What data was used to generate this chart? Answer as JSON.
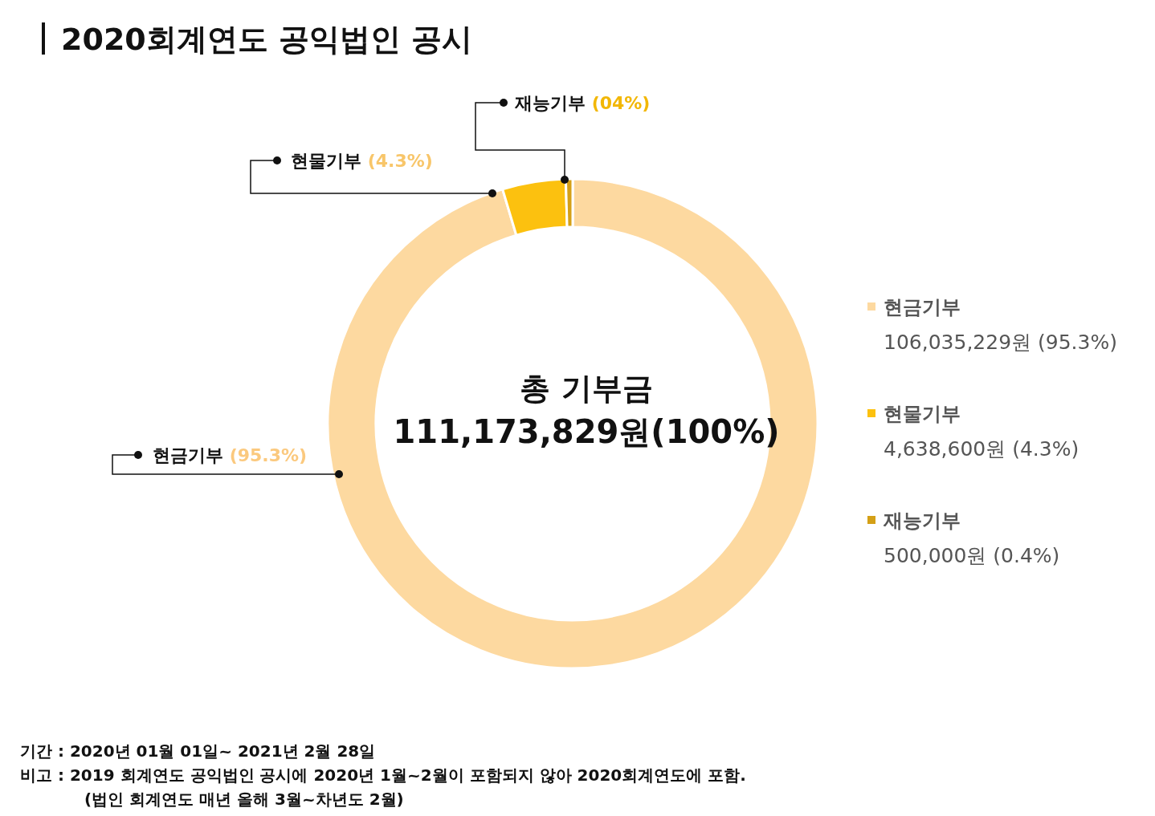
{
  "chart_data": {
    "type": "donut",
    "title": "2020회계연도 공익법인 공시",
    "categories": [
      "현금기부",
      "현물기부",
      "재능기부"
    ],
    "values": [
      106035229,
      4638600,
      500000
    ],
    "colors": [
      "#fdd9a0",
      "#fcc10f",
      "#d4a017"
    ],
    "value_labels": [
      "106,035,229원 (95.3%)",
      "4,638,600원 (4.3%)",
      "500,000원 (0.4%)"
    ],
    "legend": "right",
    "annotations": [
      "현금기부 (95.3%)",
      "현물기부 (4.3%)",
      "재능기부 (04%)",
      "총 기부금",
      "111,173,829원(100%)",
      "기간 : 2020년 01월 01일~ 2021년 2월 28일",
      "비고 : 2019 회계연도 공익법인 공시에 2020년 1월~2월이 포함되지 않아 2020회계연도에 포함.",
      "(법인 회계연도 매년 올해 3월~차년도 2월)"
    ]
  }
}
